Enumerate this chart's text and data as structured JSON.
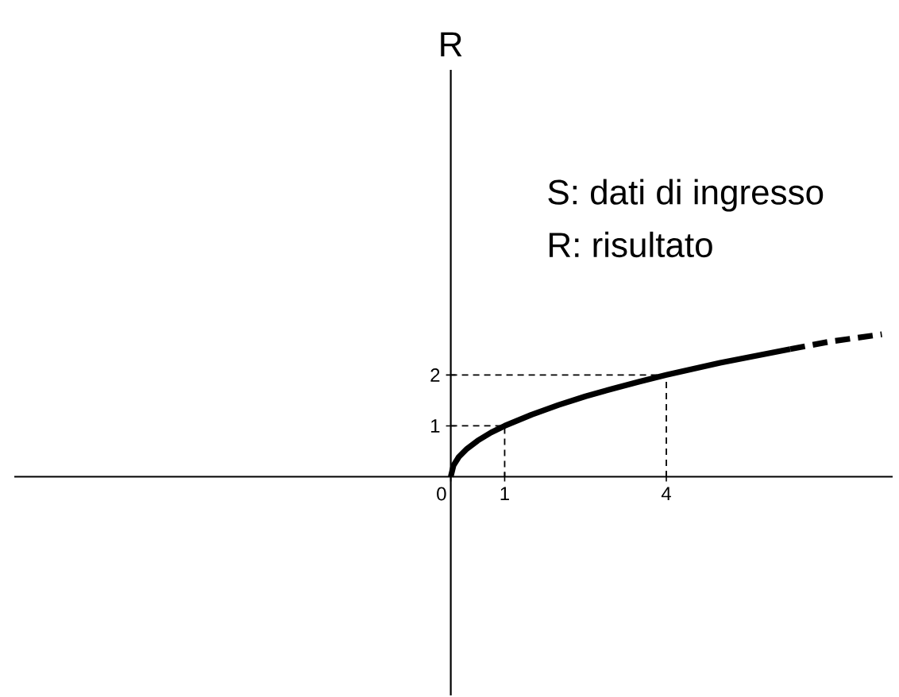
{
  "chart_data": {
    "type": "line",
    "ylabel": "R",
    "annotations": [
      "S: dati di ingresso",
      "R: risultato"
    ],
    "xlim": [
      -8.1,
      8.2
    ],
    "ylim": [
      -4.3,
      8
    ],
    "xticks": [
      0,
      1,
      4
    ],
    "yticks": [
      1,
      2
    ],
    "grid": false,
    "marker": "none",
    "series": [
      {
        "x": [
          0,
          1,
          1
        ],
        "values": [
          1,
          1,
          0
        ],
        "color": "#000000",
        "line_style": "dashed"
      },
      {
        "x": [
          0,
          4,
          4
        ],
        "values": [
          2,
          2,
          0
        ],
        "color": "#000000",
        "line_style": "dashed"
      },
      {
        "x": [
          0,
          0.05,
          0.15,
          0.3,
          0.5,
          0.75,
          1,
          1.5,
          2,
          2.5,
          3,
          3.5,
          4,
          5,
          6.3
        ],
        "values": [
          0,
          0.22,
          0.39,
          0.55,
          0.71,
          0.87,
          1,
          1.22,
          1.41,
          1.58,
          1.73,
          1.87,
          2,
          2.24,
          2.51
        ],
        "color": "#000000",
        "line_style": "solid"
      },
      {
        "x": [
          6.3,
          7,
          8
        ],
        "values": [
          2.51,
          2.65,
          2.8
        ],
        "color": "#000000",
        "line_style": "dashed"
      }
    ]
  }
}
